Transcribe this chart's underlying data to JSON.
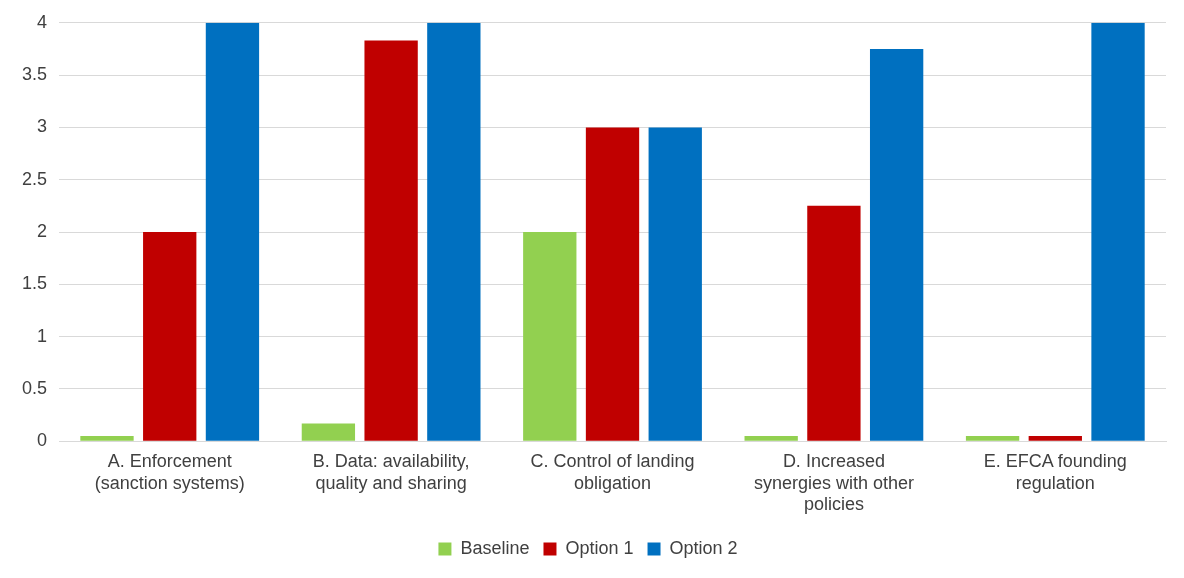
{
  "chart_data": {
    "type": "bar",
    "categories": [
      "A. Enforcement (sanction systems)",
      "B. Data: availability, quality and sharing",
      "C. Control of landing obligation",
      "D. Increased synergies with other policies",
      "E. EFCA founding regulation"
    ],
    "series": [
      {
        "name": "Baseline",
        "color": "#92d050",
        "values": [
          0.05,
          0.17,
          2,
          0.05,
          0.05
        ]
      },
      {
        "name": "Option 1",
        "color": "#c00000",
        "values": [
          2,
          3.83,
          3,
          2.25,
          0.05
        ]
      },
      {
        "name": "Option 2",
        "color": "#0070c0",
        "values": [
          4,
          4,
          3,
          3.75,
          4
        ]
      }
    ],
    "ylim": [
      0,
      4
    ],
    "yticks": [
      0,
      0.5,
      1,
      1.5,
      2,
      2.5,
      3,
      3.5,
      4
    ],
    "grid": "y",
    "legend": "bottom"
  }
}
